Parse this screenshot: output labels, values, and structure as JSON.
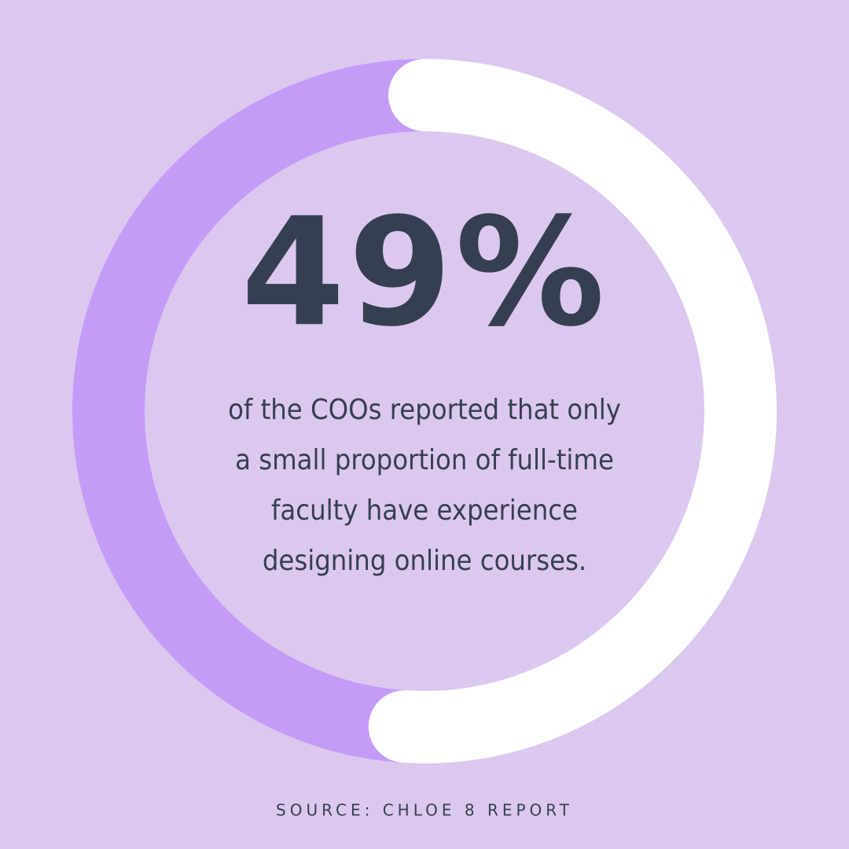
{
  "chart_data": {
    "type": "donut",
    "values": [
      49
    ],
    "value_labels": [
      "49%"
    ],
    "color": "#c59bf8",
    "rest_color": "#ffffff",
    "text_lines": [
      "of the COOs reported that only",
      "a small proportion of full-time",
      "faculty have experience",
      "designing online courses."
    ],
    "source": "SOURCE: CHLOE 8 REPORT"
  }
}
